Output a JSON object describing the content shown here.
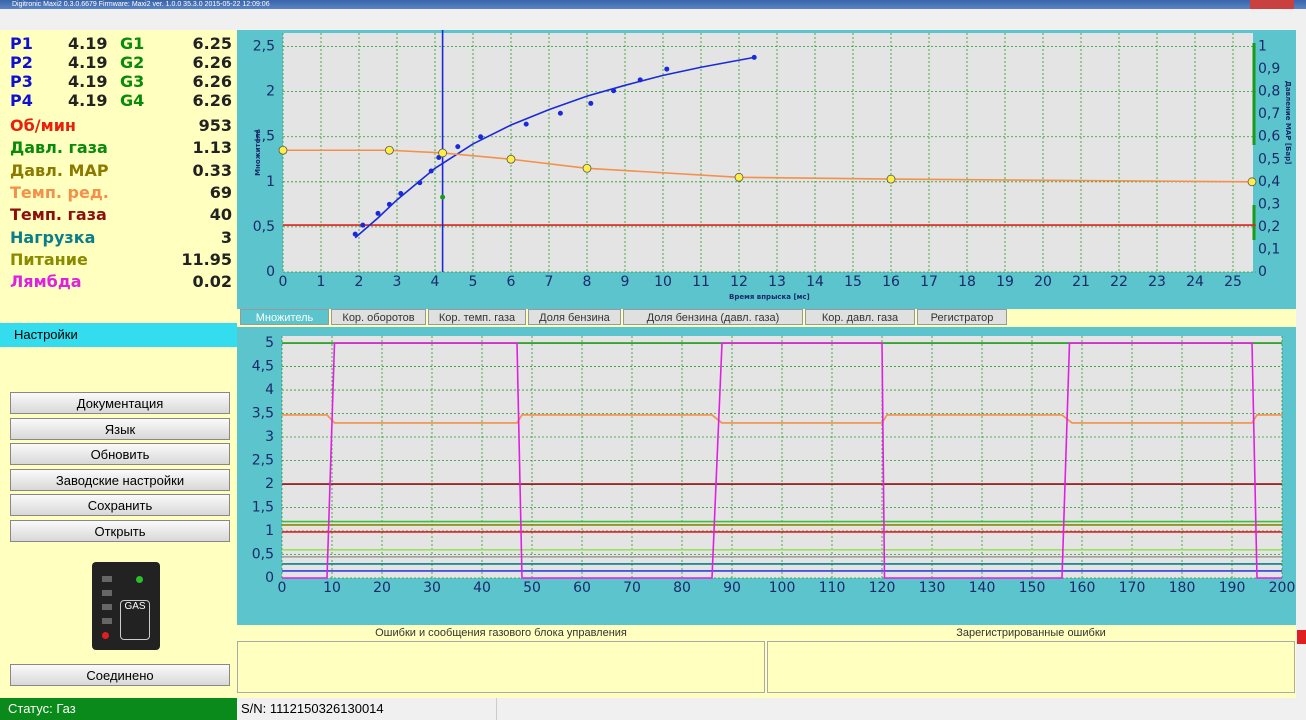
{
  "window": {
    "title": "Digitronic Maxi2 0.3.0.6679 Firmware: Maxi2 ver. 1.0.0 35.3.0 2015-05-22 12:09:06"
  },
  "sensors": [
    {
      "p_label": "P1",
      "p_value": 4.19,
      "g_label": "G1",
      "g_value": 6.25
    },
    {
      "p_label": "P2",
      "p_value": 4.19,
      "g_label": "G2",
      "g_value": 6.26
    },
    {
      "p_label": "P3",
      "p_value": 4.19,
      "g_label": "G3",
      "g_value": 6.26
    },
    {
      "p_label": "P4",
      "p_value": 4.19,
      "g_label": "G4",
      "g_value": 6.26
    }
  ],
  "parameters": [
    {
      "name": "Об/мин",
      "value": 953,
      "color": "#e8200c"
    },
    {
      "name": "Давл. газа",
      "value": 1.13,
      "color": "#0a8a0a"
    },
    {
      "name": "Давл. MAP",
      "value": 0.33,
      "color": "#8a7a00"
    },
    {
      "name": "Темп. ред.",
      "value": 69,
      "color": "#f4904a"
    },
    {
      "name": "Темп. газа",
      "value": 40,
      "color": "#8a1010"
    },
    {
      "name": "Нагрузка",
      "value": 3,
      "color": "#0a7f8a"
    },
    {
      "name": "Питание",
      "value": 11.95,
      "color": "#8a8a00"
    },
    {
      "name": "Лямбда",
      "value": 0.02,
      "color": "#e020e0"
    }
  ],
  "menu": {
    "item": "Настройки"
  },
  "buttons": [
    "Документация",
    "Язык",
    "Обновить",
    "Заводские настройки",
    "Сохранить",
    "Открыть"
  ],
  "device_icon": {
    "label": "GAS"
  },
  "connection": "Соединено",
  "tabs": [
    "Множитель",
    "Кор. оборотов",
    "Кор. темп. газа",
    "Доля бензина",
    "Доля бензина (давл. газа)",
    "Кор. давл. газа",
    "Регистратор"
  ],
  "panels": [
    "Ошибки и сообщения газового блока управления",
    "Зарегистрированные ошибки"
  ],
  "status": {
    "mode": "Статус: Газ",
    "serial": "S/N: 1112150326130014"
  },
  "chart_data": [
    {
      "type": "line",
      "xlabel": "Время впрыска [мс]",
      "ylabel": "Множитель",
      "y2label": "Давление МАР [Бар]",
      "xlim": [
        0,
        25.6
      ],
      "ylim": [
        0,
        2.65
      ],
      "y2lim": [
        0,
        1.06
      ],
      "grid": true,
      "xticks": [
        0,
        1,
        2,
        3,
        4,
        5,
        6,
        7,
        8,
        9,
        10,
        11,
        12,
        13,
        14,
        15,
        16,
        17,
        18,
        19,
        20,
        21,
        22,
        23,
        24,
        25
      ],
      "yticks": [
        0,
        {
          "value": 0.5,
          "label": "0,5"
        },
        1,
        {
          "value": 1.5,
          "label": "1,5"
        },
        2,
        {
          "value": 2.5,
          "label": "2,5"
        }
      ],
      "y2ticks": [
        0,
        {
          "value": 0.1,
          "label": "0,1"
        },
        {
          "value": 0.2,
          "label": "0,2"
        },
        {
          "value": 0.3,
          "label": "0,3"
        },
        {
          "value": 0.4,
          "label": "0,4"
        },
        {
          "value": 0.5,
          "label": "0,5"
        },
        {
          "value": 0.6,
          "label": "0,6"
        },
        {
          "value": 0.7,
          "label": "0,7"
        },
        {
          "value": 0.8,
          "label": "0,8"
        },
        {
          "value": 0.9,
          "label": "0,9"
        },
        1
      ],
      "cursor_x": 4.2,
      "hlines": [
        {
          "color": "#e02020",
          "value": 0.52
        }
      ],
      "series": [
        {
          "kind": "scatter",
          "color": "#1a2ad8",
          "x": [
            1.9,
            2.1,
            2.5,
            2.8,
            3.1,
            3.6,
            3.9,
            4.1,
            4.6,
            5.2,
            6.4,
            7.3,
            8.1,
            8.7,
            9.4,
            10.1,
            12.4
          ],
          "values": [
            0.42,
            0.52,
            0.65,
            0.75,
            0.87,
            0.99,
            1.12,
            1.27,
            1.39,
            1.5,
            1.64,
            1.76,
            1.87,
            2.01,
            2.13,
            2.25,
            2.38
          ]
        },
        {
          "kind": "line",
          "color": "#1a2ad8",
          "x": [
            1.9,
            2.5,
            3,
            4,
            5,
            6,
            7,
            8,
            9,
            10,
            11,
            12.4
          ],
          "values": [
            0.38,
            0.6,
            0.8,
            1.15,
            1.42,
            1.63,
            1.8,
            1.95,
            2.07,
            2.18,
            2.27,
            2.38
          ]
        },
        {
          "kind": "line",
          "color": "#f4904a",
          "markers": "#ffee44",
          "x": [
            0,
            2.8,
            4.2,
            6,
            8,
            12,
            16,
            25.5
          ],
          "values": [
            1.35,
            1.35,
            1.32,
            1.25,
            1.15,
            1.05,
            1.03,
            1.0
          ]
        },
        {
          "kind": "scatter",
          "color": "#1a9a1a",
          "x": [
            4.2
          ],
          "values": [
            0.83
          ]
        }
      ]
    },
    {
      "type": "line",
      "xlim": [
        0,
        200
      ],
      "ylim": [
        0,
        5.15
      ],
      "grid": true,
      "xticks": [
        0,
        10,
        20,
        30,
        40,
        50,
        60,
        70,
        80,
        90,
        100,
        110,
        120,
        130,
        140,
        150,
        160,
        170,
        180,
        190,
        200
      ],
      "yticks": [
        0,
        {
          "value": 0.5,
          "label": "0,5"
        },
        1,
        {
          "value": 1.5,
          "label": "1,5"
        },
        2,
        {
          "value": 2.5,
          "label": "2,5"
        },
        3,
        {
          "value": 3.5,
          "label": "3,5"
        },
        4,
        {
          "value": 4.5,
          "label": "4,5"
        },
        5
      ],
      "hlines": [
        {
          "color": "#1a9a1a",
          "value": 5
        },
        {
          "color": "#8a1010",
          "value": 2
        },
        {
          "color": "#3ac03a",
          "value": 1.2
        },
        {
          "color": "#8a8a00",
          "value": 1.13
        },
        {
          "color": "#e02020",
          "value": 0.98
        },
        {
          "color": "#9ae060",
          "value": 0.6
        },
        {
          "color": "#a0a0a0",
          "value": 0.45
        },
        {
          "color": "#0a7f8a",
          "value": 0.3
        },
        {
          "color": "#3040e0",
          "value": 0.15
        }
      ],
      "series": [
        {
          "kind": "line",
          "color": "#f4904a",
          "x": [
            0,
            9,
            10.5,
            47,
            48,
            86,
            88,
            120,
            121,
            156,
            158,
            194,
            195,
            200
          ],
          "values": [
            3.47,
            3.47,
            3.3,
            3.3,
            3.47,
            3.47,
            3.3,
            3.3,
            3.47,
            3.47,
            3.3,
            3.3,
            3.47,
            3.47
          ]
        },
        {
          "kind": "line",
          "color": "#e020e0",
          "x": [
            0,
            9,
            10.5,
            47,
            48,
            86,
            88,
            120,
            120.5,
            156,
            157.5,
            194,
            195,
            200
          ],
          "values": [
            0,
            0,
            5,
            5,
            0,
            0,
            5,
            5,
            0,
            0,
            5,
            5,
            0,
            0
          ]
        }
      ]
    }
  ]
}
